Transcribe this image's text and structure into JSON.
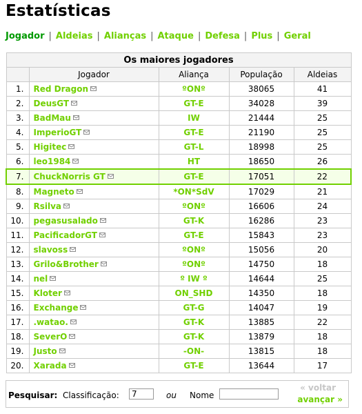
{
  "title": "Estatísticas",
  "nav": [
    "Jogador",
    "Aldeias",
    "Alianças",
    "Ataque",
    "Defesa",
    "Plus",
    "Geral"
  ],
  "table": {
    "caption": "Os maiores jogadores",
    "headers": [
      "",
      "Jogador",
      "Aliança",
      "População",
      "Aldeias"
    ],
    "rows": [
      {
        "rank": "1.",
        "player": "Red Dragon",
        "ally": "ºONº",
        "pop": "38065",
        "villages": "41"
      },
      {
        "rank": "2.",
        "player": "DeusGT",
        "ally": "GT-E",
        "pop": "34028",
        "villages": "39"
      },
      {
        "rank": "3.",
        "player": "BadMau",
        "ally": "IW",
        "pop": "21444",
        "villages": "25"
      },
      {
        "rank": "4.",
        "player": "ImperioGT",
        "ally": "GT-E",
        "pop": "21190",
        "villages": "25"
      },
      {
        "rank": "5.",
        "player": "Higitec",
        "ally": "GT-L",
        "pop": "18998",
        "villages": "25"
      },
      {
        "rank": "6.",
        "player": "leo1984",
        "ally": "HT",
        "pop": "18650",
        "villages": "26"
      },
      {
        "rank": "7.",
        "player": "ChuckNorris GT",
        "ally": "GT-E",
        "pop": "17051",
        "villages": "22"
      },
      {
        "rank": "8.",
        "player": "Magneto",
        "ally": "*ON*SdV",
        "pop": "17029",
        "villages": "21"
      },
      {
        "rank": "9.",
        "player": "Rsilva",
        "ally": "ºONº",
        "pop": "16606",
        "villages": "24"
      },
      {
        "rank": "10.",
        "player": "pegasusalado",
        "ally": "GT-K",
        "pop": "16286",
        "villages": "23"
      },
      {
        "rank": "11.",
        "player": "PacificadorGT",
        "ally": "GT-E",
        "pop": "15843",
        "villages": "23"
      },
      {
        "rank": "12.",
        "player": "slavoss",
        "ally": "ºONº",
        "pop": "15056",
        "villages": "20"
      },
      {
        "rank": "13.",
        "player": "Grilo&Brother",
        "ally": "ºONº",
        "pop": "14750",
        "villages": "18"
      },
      {
        "rank": "14.",
        "player": "nel",
        "ally": "º IW º",
        "pop": "14644",
        "villages": "25"
      },
      {
        "rank": "15.",
        "player": "Kloter",
        "ally": "ON_SHD",
        "pop": "14350",
        "villages": "18"
      },
      {
        "rank": "16.",
        "player": "Exchange",
        "ally": "GT-G",
        "pop": "14047",
        "villages": "19"
      },
      {
        "rank": "17.",
        "player": ".watao.",
        "ally": "GT-K",
        "pop": "13885",
        "villages": "22"
      },
      {
        "rank": "18.",
        "player": "SeverO",
        "ally": "GT-K",
        "pop": "13879",
        "villages": "18"
      },
      {
        "rank": "19.",
        "player": "Justo",
        "ally": "-ON-",
        "pop": "13815",
        "villages": "18"
      },
      {
        "rank": "20.",
        "player": "Xarada",
        "ally": "GT-E",
        "pop": "13644",
        "villages": "17"
      }
    ],
    "highlight_rank": "7."
  },
  "search": {
    "label": "Pesquisar:",
    "rank_label": "Classificação:",
    "rank_value": "7",
    "or_label": "ou",
    "name_label": "Nome",
    "name_value": "",
    "back_label": "« voltar",
    "next_label": "avançar »"
  },
  "colors": {
    "link": "#71d000",
    "active": "#009900",
    "border": "#c9c9c9",
    "header_bg": "#f3f3f3"
  }
}
